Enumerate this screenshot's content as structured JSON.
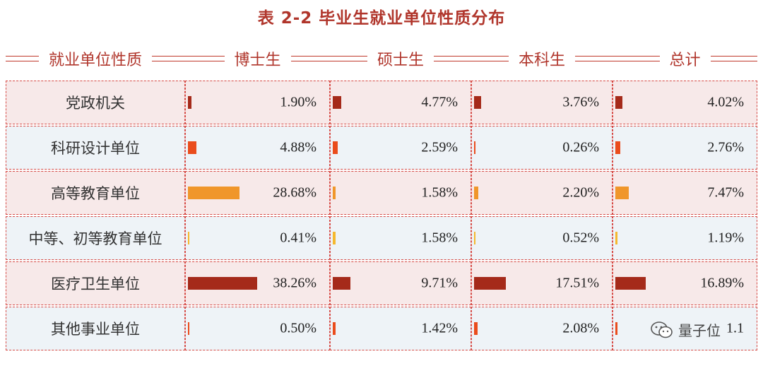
{
  "title": "表 2-2   毕业生就业单位性质分布",
  "headers": [
    "就业单位性质",
    "博士生",
    "硕士生",
    "本科生",
    "总计"
  ],
  "chart_data": {
    "type": "table",
    "title": "表 2-2   毕业生就业单位性质分布",
    "columns": [
      "博士生",
      "硕士生",
      "本科生",
      "总计"
    ],
    "rows": [
      {
        "label": "党政机关",
        "values": [
          1.9,
          4.77,
          3.76,
          4.02
        ],
        "text": [
          "1.90%",
          "4.77%",
          "3.76%",
          "4.02%"
        ],
        "color": "#a52a1a"
      },
      {
        "label": "科研设计单位",
        "values": [
          4.88,
          2.59,
          0.26,
          2.76
        ],
        "text": [
          "4.88%",
          "2.59%",
          "0.26%",
          "2.76%"
        ],
        "color": "#ea4c1c"
      },
      {
        "label": "高等教育单位",
        "values": [
          28.68,
          1.58,
          2.2,
          7.47
        ],
        "text": [
          "28.68%",
          "1.58%",
          "2.20%",
          "7.47%"
        ],
        "color": "#f0962a"
      },
      {
        "label": "中等、初等教育单位",
        "values": [
          0.41,
          1.58,
          0.52,
          1.19
        ],
        "text": [
          "0.41%",
          "1.58%",
          "0.52%",
          "1.19%"
        ],
        "color": "#f5b82e"
      },
      {
        "label": "医疗卫生单位",
        "values": [
          38.26,
          9.71,
          17.51,
          16.89
        ],
        "text": [
          "38.26%",
          "9.71%",
          "17.51%",
          "16.89%"
        ],
        "color": "#a52a1a"
      },
      {
        "label": "其他事业单位",
        "values": [
          0.5,
          1.42,
          2.08,
          1.1
        ],
        "text": [
          "0.50%",
          "1.42%",
          "2.08%",
          "1.1"
        ],
        "color": "#ea4c1c"
      }
    ],
    "bar_max_value": 38.26
  },
  "watermark": {
    "text": "量子位",
    "icon": "wechat-icon"
  }
}
